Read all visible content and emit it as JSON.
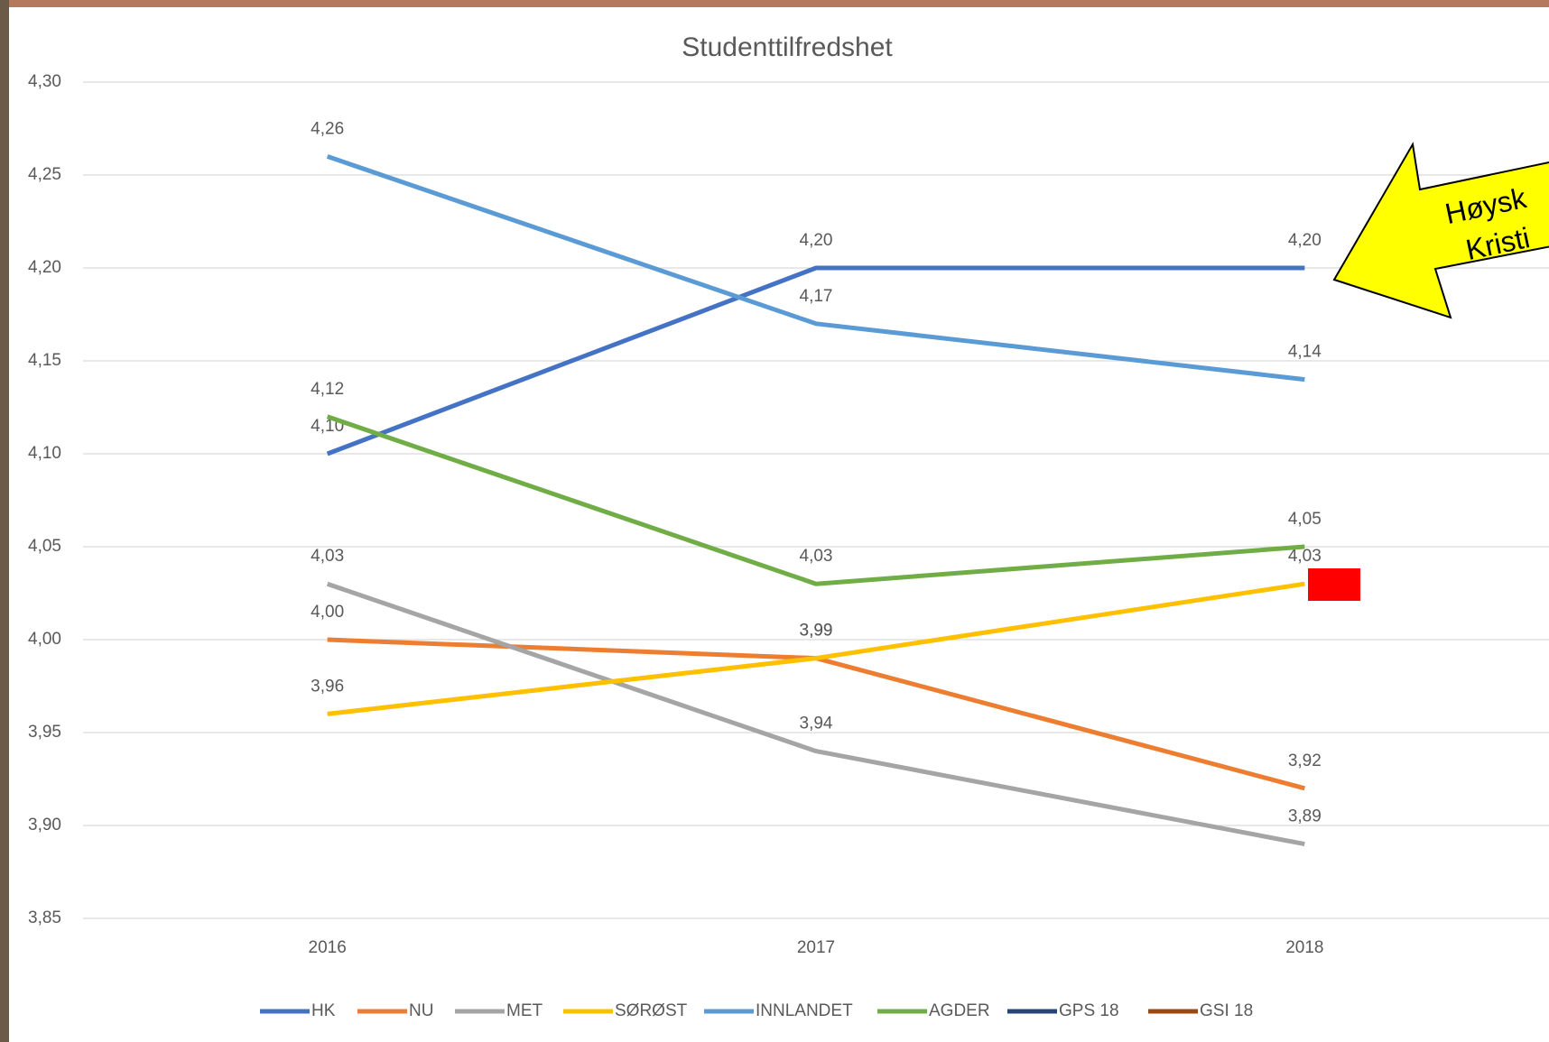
{
  "chart_data": {
    "type": "line",
    "title": "Studenttilfredshet",
    "categories": [
      "2016",
      "2017",
      "2018"
    ],
    "series": [
      {
        "name": "HK",
        "color": "#4472c4",
        "values": [
          4.1,
          4.2,
          4.2
        ],
        "value_labels": [
          "4,10",
          "4,20",
          "4,20"
        ]
      },
      {
        "name": "NU",
        "color": "#ed7d31",
        "values": [
          4.0,
          3.99,
          3.92
        ],
        "value_labels": [
          "4,00",
          "3,99",
          "3,92"
        ]
      },
      {
        "name": "MET",
        "color": "#a5a5a5",
        "values": [
          4.03,
          3.94,
          3.89
        ],
        "value_labels": [
          "4,03",
          "3,94",
          "3,89"
        ]
      },
      {
        "name": "SØRØST",
        "color": "#ffc000",
        "values": [
          3.96,
          3.99,
          4.03
        ],
        "value_labels": [
          "3,96",
          "3,99",
          "4,03"
        ]
      },
      {
        "name": "INNLANDET",
        "color": "#5b9bd5",
        "values": [
          4.26,
          4.17,
          4.14
        ],
        "value_labels": [
          "4,26",
          "4,17",
          "4,14"
        ]
      },
      {
        "name": "AGDER",
        "color": "#70ad47",
        "values": [
          4.12,
          4.03,
          4.05
        ],
        "value_labels": [
          "4,12",
          "4,03",
          "4,05"
        ]
      },
      {
        "name": "GPS 18",
        "color": "#264478",
        "values": [
          null,
          null,
          null
        ]
      },
      {
        "name": "GSI 18",
        "color": "#9e480e",
        "values": [
          null,
          null,
          null
        ]
      }
    ],
    "ylim": [
      3.85,
      4.3
    ],
    "yticks": [
      {
        "value": 3.85,
        "label": "3,85"
      },
      {
        "value": 3.9,
        "label": "3,90"
      },
      {
        "value": 3.95,
        "label": "3,95"
      },
      {
        "value": 4.0,
        "label": "4,00"
      },
      {
        "value": 4.05,
        "label": "4,05"
      },
      {
        "value": 4.1,
        "label": "4,10"
      },
      {
        "value": 4.15,
        "label": "4,15"
      },
      {
        "value": 4.2,
        "label": "4,20"
      },
      {
        "value": 4.25,
        "label": "4,25"
      },
      {
        "value": 4.3,
        "label": "4,30"
      }
    ],
    "grid": true,
    "legend": "bottom",
    "annotations": [
      "Høysk",
      "Kristi"
    ]
  }
}
